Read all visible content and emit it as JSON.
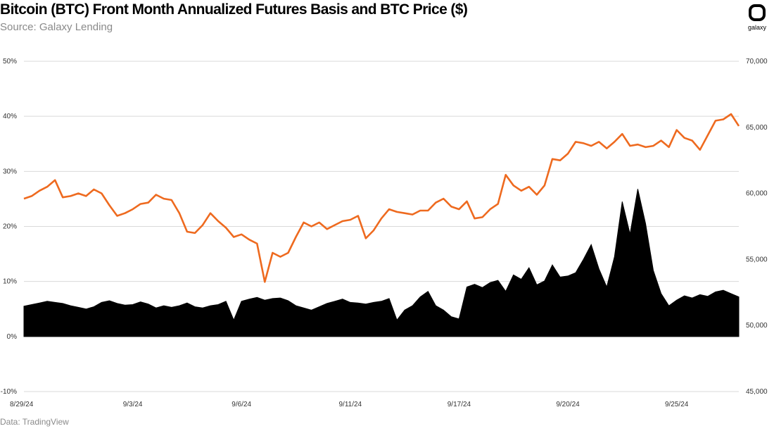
{
  "header": {
    "title": "Bitcoin (BTC) Front Month Annualized Futures Basis and BTC Price ($)",
    "subtitle": "Source: Galaxy Lending",
    "logo_text": "galaxy"
  },
  "footer": {
    "source": "Data: TradingView"
  },
  "colors": {
    "price": "#ee6a1f",
    "basis": "#000000",
    "grid": "#d9d9d9"
  },
  "chart_data": {
    "type": "line",
    "title": "Bitcoin (BTC) Front Month Annualized Futures Basis and BTC Price ($)",
    "x_ticks": [
      "8/29/24",
      "9/3/24",
      "9/6/24",
      "9/11/24",
      "9/17/24",
      "9/20/24",
      "9/25/24"
    ],
    "x_tick_index": [
      0,
      14,
      28,
      42,
      56,
      70,
      84
    ],
    "x_count": 93,
    "y_left": {
      "ticks": [
        "-10%",
        "0%",
        "10%",
        "20%",
        "30%",
        "40%",
        "50%"
      ],
      "range": [
        -10,
        50
      ]
    },
    "y_right": {
      "ticks": [
        "45,000",
        "50,000",
        "55,000",
        "60,000",
        "65,000",
        "70,000"
      ],
      "range": [
        45000,
        70000
      ]
    },
    "grid": true,
    "series": [
      {
        "axis": "right",
        "style": "line",
        "values": [
          59600,
          59800,
          60200,
          60500,
          61000,
          59700,
          59800,
          60000,
          59800,
          60300,
          60000,
          59100,
          58300,
          58500,
          58800,
          59200,
          59300,
          59900,
          59600,
          59500,
          58500,
          57100,
          57000,
          57600,
          58500,
          57900,
          57400,
          56700,
          56900,
          56500,
          56200,
          53300,
          55500,
          55200,
          55500,
          56700,
          57800,
          57500,
          57800,
          57300,
          57600,
          57900,
          58000,
          58300,
          56600,
          57200,
          58100,
          58800,
          58600,
          58500,
          58400,
          58700,
          58700,
          59300,
          59600,
          59000,
          58800,
          59400,
          58100,
          58200,
          58800,
          59200,
          61400,
          60600,
          60200,
          60500,
          59900,
          60600,
          62600,
          62500,
          63000,
          63900,
          63800,
          63600,
          63900,
          63400,
          63900,
          64500,
          63600,
          63700,
          63500,
          63600,
          64000,
          63500,
          64800,
          64200,
          64000,
          63300,
          64400,
          65500,
          65600,
          66000,
          65100
        ]
      },
      {
        "axis": "left",
        "style": "area",
        "values": [
          5.5,
          5.8,
          6.1,
          6.4,
          6.2,
          6.0,
          5.6,
          5.3,
          5.0,
          5.4,
          6.2,
          6.5,
          6.0,
          5.7,
          5.8,
          6.3,
          5.9,
          5.2,
          5.6,
          5.3,
          5.6,
          6.1,
          5.4,
          5.2,
          5.6,
          5.8,
          6.4,
          3.0,
          6.4,
          6.8,
          7.1,
          6.6,
          6.9,
          7.0,
          6.5,
          5.6,
          5.2,
          4.8,
          5.4,
          6.0,
          6.4,
          6.8,
          6.2,
          6.1,
          5.9,
          6.2,
          6.4,
          6.9,
          3.0,
          4.8,
          5.6,
          7.2,
          8.2,
          5.6,
          4.8,
          3.6,
          3.2,
          9.0,
          9.5,
          8.9,
          9.8,
          10.2,
          8.2,
          11.2,
          10.4,
          12.5,
          9.4,
          10.1,
          13.0,
          10.8,
          11.0,
          11.6,
          14.0,
          16.7,
          12.3,
          9.0,
          14.5,
          24.5,
          18.6,
          26.8,
          20.5,
          12.0,
          7.8,
          5.6,
          6.6,
          7.4,
          7.0,
          7.6,
          7.3,
          8.1,
          8.4,
          7.8,
          7.2
        ]
      }
    ]
  }
}
